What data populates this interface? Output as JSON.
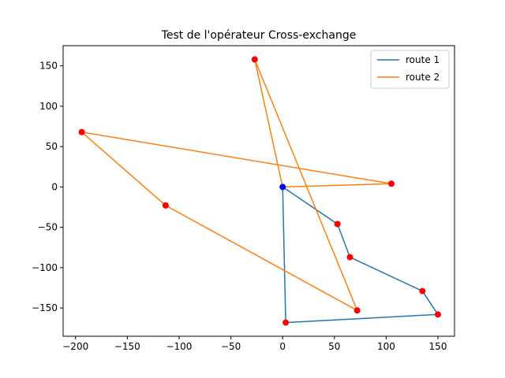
{
  "chart_data": {
    "type": "line",
    "title": "Test de l'opérateur Cross-exchange",
    "xlabel": "",
    "ylabel": "",
    "xlim": [
      -212,
      166
    ],
    "ylim": [
      -185,
      175
    ],
    "xticks": [
      -200,
      -150,
      -100,
      -50,
      0,
      50,
      100,
      150
    ],
    "yticks": [
      -150,
      -100,
      -50,
      0,
      50,
      100,
      150
    ],
    "grid": false,
    "legend_position": "top-right",
    "series": [
      {
        "name": "route 1",
        "color": "#1f77b4",
        "points": [
          [
            0,
            0
          ],
          [
            53,
            -46
          ],
          [
            65,
            -87
          ],
          [
            135,
            -129
          ],
          [
            150,
            -158
          ],
          [
            3,
            -168
          ],
          [
            0,
            0
          ]
        ]
      },
      {
        "name": "route 2",
        "color": "#ff7f0e",
        "points": [
          [
            0,
            0
          ],
          [
            105,
            4
          ],
          [
            -194,
            68
          ],
          [
            -113,
            -23
          ],
          [
            72,
            -153
          ],
          [
            -27,
            158
          ],
          [
            0,
            0
          ]
        ]
      }
    ],
    "customers": {
      "color": "#ff0000",
      "points": [
        [
          53,
          -46
        ],
        [
          65,
          -87
        ],
        [
          135,
          -129
        ],
        [
          150,
          -158
        ],
        [
          3,
          -168
        ],
        [
          105,
          4
        ],
        [
          -194,
          68
        ],
        [
          -113,
          -23
        ],
        [
          72,
          -153
        ],
        [
          -27,
          158
        ]
      ]
    },
    "depot": {
      "color": "#0000ff",
      "point": [
        0,
        0
      ]
    }
  }
}
